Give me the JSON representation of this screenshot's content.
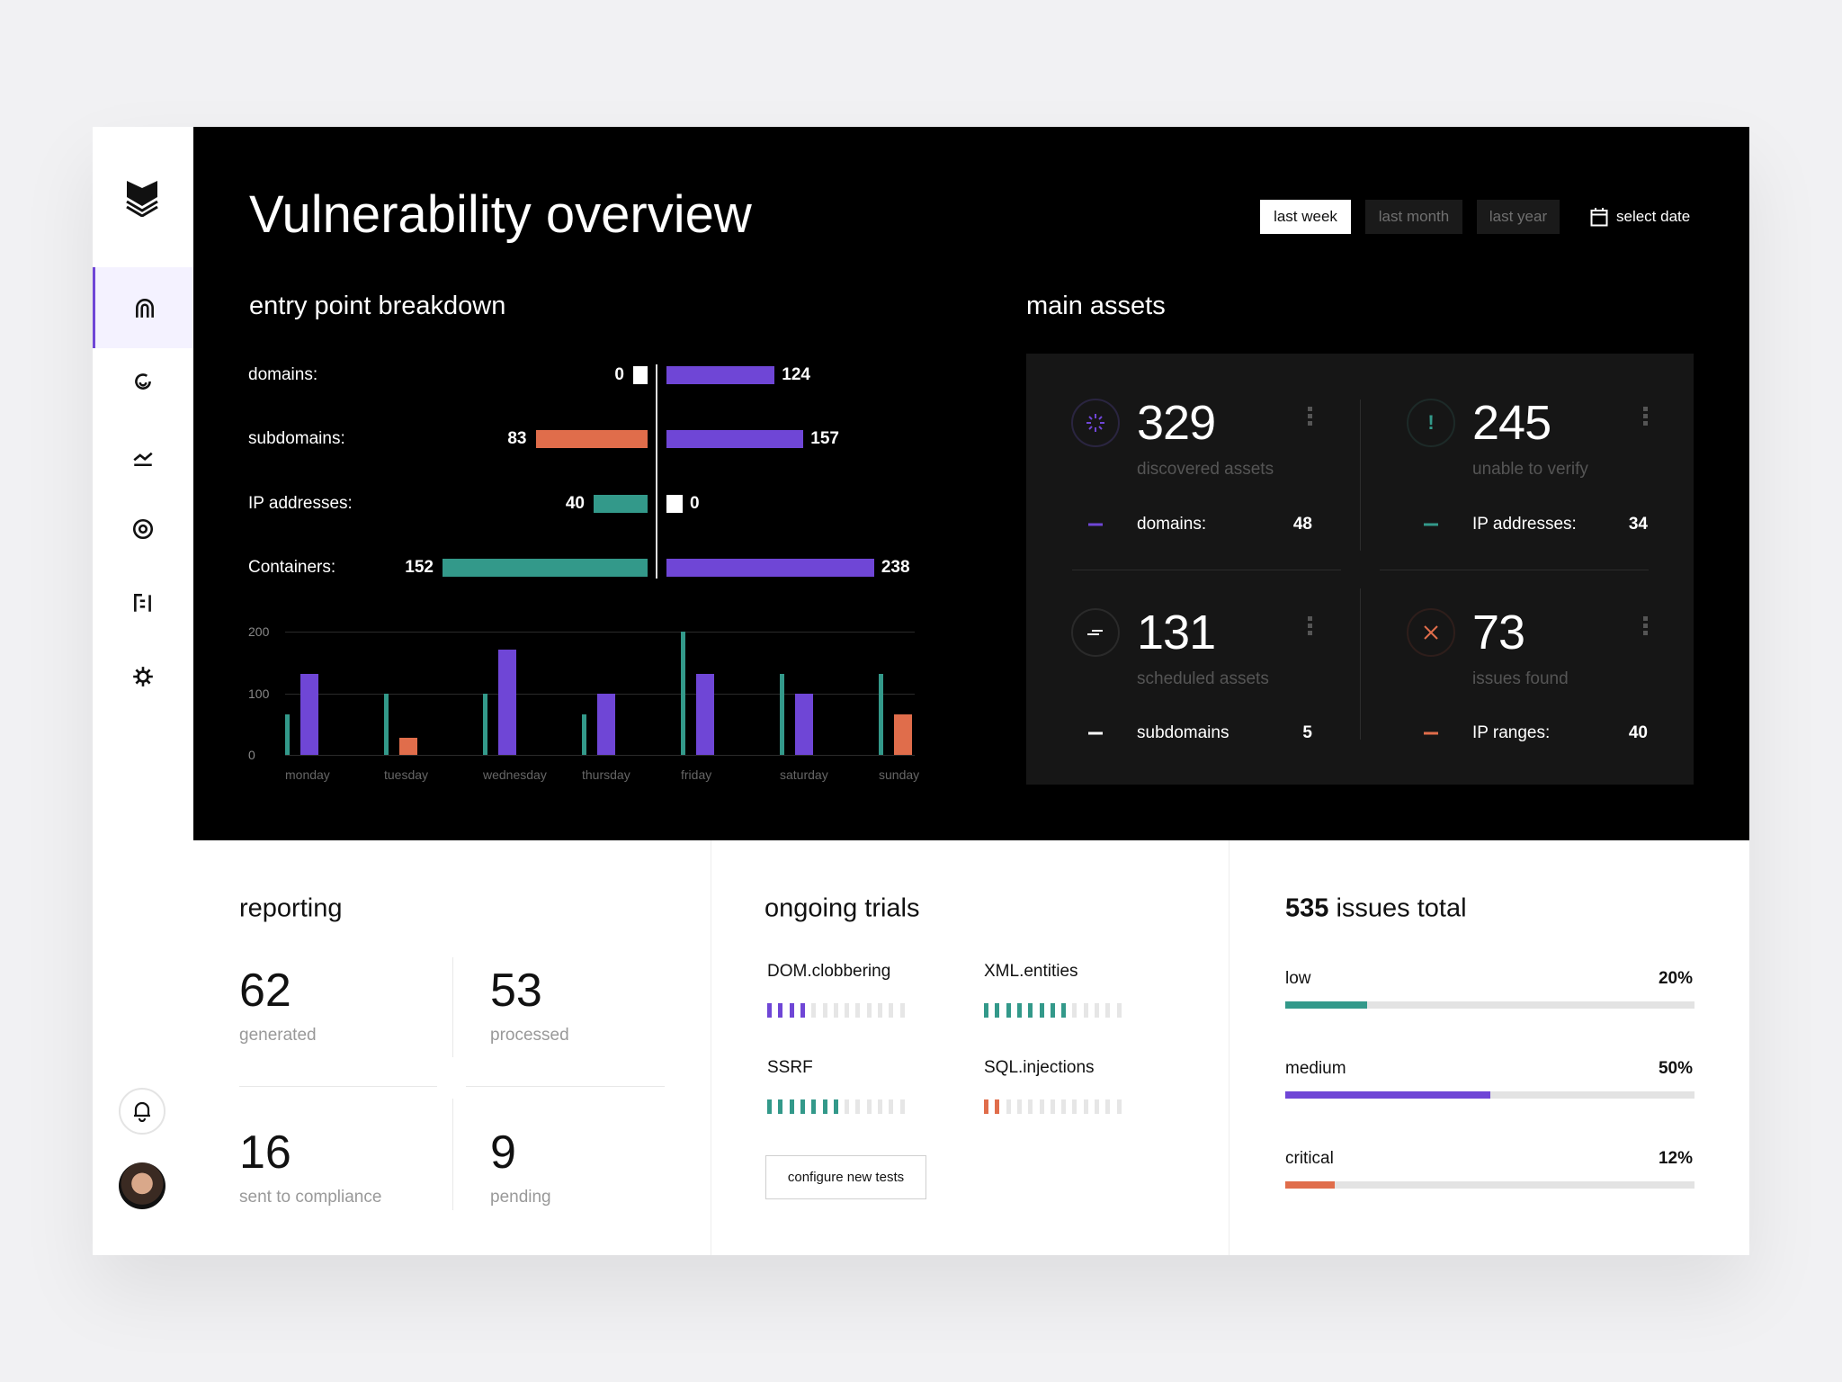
{
  "colors": {
    "purple": "#6f46d6",
    "teal": "#33998a",
    "orange": "#e06d4b",
    "white": "#ffffff"
  },
  "sidebar": {
    "logo": "shield-logo",
    "items": [
      {
        "name": "home",
        "icon": "arch-icon",
        "active": true
      },
      {
        "name": "spiral",
        "icon": "spiral-icon"
      },
      {
        "name": "analytics",
        "icon": "trend-icon"
      },
      {
        "name": "targets",
        "icon": "target-icon"
      },
      {
        "name": "reports",
        "icon": "list-icon"
      },
      {
        "name": "settings",
        "icon": "gear-icon"
      }
    ],
    "notifications_icon": "bell-icon",
    "avatar": "user-avatar"
  },
  "header": {
    "title": "Vulnerability overview",
    "ranges": [
      {
        "label": "last week",
        "active": true
      },
      {
        "label": "last month"
      },
      {
        "label": "last year"
      }
    ],
    "select_date": "select date"
  },
  "breakdown": {
    "title": "entry point breakdown",
    "rows": [
      {
        "label": "domains:",
        "left": 0,
        "left_color": "white",
        "right": 124,
        "right_color": "purple"
      },
      {
        "label": "subdomains:",
        "left": 83,
        "left_color": "orange",
        "right": 157,
        "right_color": "purple"
      },
      {
        "label": "IP addresses:",
        "left": 40,
        "left_color": "teal",
        "right": 0,
        "right_color": "white"
      },
      {
        "label": "Containers:",
        "left": 152,
        "left_color": "teal",
        "right": 238,
        "right_color": "purple"
      }
    ]
  },
  "chart_data": {
    "type": "bar",
    "categories": [
      "monday",
      "tuesday",
      "wednesday",
      "thursday",
      "friday",
      "saturday",
      "sunday"
    ],
    "ylim": [
      0,
      200
    ],
    "yticks": [
      "0",
      "100",
      "200"
    ],
    "grid": true,
    "series": [
      {
        "color": "#33998a",
        "values": [
          66,
          100,
          100,
          66,
          200,
          132,
          132
        ]
      },
      {
        "color": "#6f46d6",
        "values": [
          132,
          null,
          172,
          100,
          132,
          100,
          null
        ]
      },
      {
        "color": "#e06d4b",
        "values": [
          null,
          28,
          null,
          null,
          null,
          null,
          66
        ]
      }
    ]
  },
  "assets": {
    "title": "main assets",
    "cards": [
      {
        "value": "329",
        "label": "discovered assets",
        "icon": "loader-icon",
        "color": "purple",
        "sub_label": "domains:",
        "sub_value": "48"
      },
      {
        "value": "245",
        "label": "unable to verify",
        "icon": "exclamation-icon",
        "color": "teal",
        "sub_label": "IP addresses:",
        "sub_value": "34"
      },
      {
        "value": "131",
        "label": "scheduled assets",
        "icon": "lines-icon",
        "color": "white",
        "sub_label": "subdomains",
        "sub_value": "5"
      },
      {
        "value": "73",
        "label": "issues found",
        "icon": "close-x-icon",
        "color": "orange",
        "sub_label": "IP ranges:",
        "sub_value": "40"
      }
    ]
  },
  "reporting": {
    "title": "reporting",
    "stats": [
      {
        "value": "62",
        "label": "generated"
      },
      {
        "value": "53",
        "label": "processed"
      },
      {
        "value": "16",
        "label": "sent to compliance"
      },
      {
        "value": "9",
        "label": "pending"
      }
    ]
  },
  "trials": {
    "title": "ongoing trials",
    "segments_total": 13,
    "items": [
      {
        "label": "DOM.clobbering",
        "filled": 4,
        "color": "purple"
      },
      {
        "label": "XML.entities",
        "filled": 8,
        "color": "teal"
      },
      {
        "label": "SSRF",
        "filled": 7,
        "color": "teal"
      },
      {
        "label": "SQL.injections",
        "filled": 2,
        "color": "orange"
      }
    ],
    "button": "configure new tests"
  },
  "issues": {
    "total": "535",
    "title_suffix": " issues total",
    "levels": [
      {
        "label": "low",
        "percent": 20,
        "percent_label": "20%",
        "color": "teal"
      },
      {
        "label": "medium",
        "percent": 50,
        "percent_label": "50%",
        "color": "purple"
      },
      {
        "label": "critical",
        "percent": 12,
        "percent_label": "12%",
        "color": "orange"
      }
    ]
  }
}
